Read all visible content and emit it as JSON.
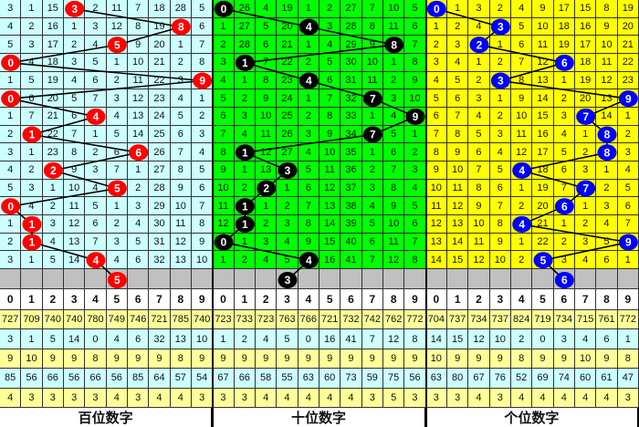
{
  "columns": [
    "0",
    "1",
    "2",
    "3",
    "4",
    "5",
    "6",
    "7",
    "8",
    "9"
  ],
  "colors": {
    "stat_odd": "#ffff99",
    "stat_even": "#ccffff",
    "gray_row": "#c0c0c0",
    "line": "#000000"
  },
  "panels": [
    {
      "label": "百位数字",
      "bg": "#ccffff",
      "ball_color": "#ff0000",
      "rows": [
        [
          3,
          1,
          15,
          3,
          2,
          11,
          7,
          18,
          28,
          5
        ],
        [
          4,
          2,
          16,
          1,
          3,
          12,
          8,
          19,
          8,
          6
        ],
        [
          5,
          3,
          17,
          2,
          4,
          5,
          9,
          20,
          1,
          7
        ],
        [
          0,
          4,
          18,
          3,
          5,
          1,
          10,
          21,
          2,
          8
        ],
        [
          1,
          5,
          19,
          4,
          6,
          2,
          11,
          22,
          3,
          9
        ],
        [
          0,
          6,
          20,
          5,
          7,
          3,
          12,
          23,
          4,
          1
        ],
        [
          1,
          7,
          21,
          6,
          4,
          4,
          13,
          24,
          5,
          2
        ],
        [
          2,
          1,
          22,
          7,
          1,
          5,
          14,
          25,
          6,
          3
        ],
        [
          3,
          1,
          23,
          8,
          2,
          6,
          6,
          26,
          7,
          4
        ],
        [
          4,
          2,
          2,
          9,
          3,
          7,
          1,
          27,
          8,
          5
        ],
        [
          5,
          3,
          1,
          10,
          4,
          5,
          2,
          28,
          9,
          6
        ],
        [
          0,
          4,
          2,
          11,
          5,
          1,
          3,
          29,
          10,
          7
        ],
        [
          1,
          1,
          3,
          12,
          6,
          2,
          4,
          30,
          11,
          8
        ],
        [
          2,
          1,
          4,
          13,
          7,
          3,
          5,
          31,
          12,
          9
        ],
        [
          3,
          1,
          5,
          14,
          4,
          4,
          6,
          32,
          13,
          10
        ]
      ],
      "hits": [
        3,
        8,
        5,
        0,
        9,
        0,
        4,
        1,
        6,
        2,
        5,
        0,
        1,
        1,
        4
      ],
      "prediction": 5,
      "stats": [
        [
          727,
          709,
          740,
          740,
          780,
          749,
          746,
          721,
          785,
          740
        ],
        [
          3,
          1,
          5,
          14,
          0,
          4,
          6,
          32,
          13,
          10
        ],
        [
          9,
          10,
          9,
          9,
          8,
          9,
          9,
          9,
          8,
          9
        ],
        [
          85,
          56,
          66,
          56,
          66,
          56,
          85,
          64,
          57,
          54
        ],
        [
          4,
          3,
          3,
          3,
          3,
          4,
          3,
          4,
          4,
          3
        ]
      ]
    },
    {
      "label": "十位数字",
      "bg": "#00ff00",
      "ball_color": "#000000",
      "rows": [
        [
          0,
          26,
          4,
          19,
          1,
          2,
          27,
          7,
          10,
          5
        ],
        [
          1,
          27,
          5,
          20,
          4,
          3,
          28,
          8,
          11,
          6
        ],
        [
          2,
          28,
          6,
          21,
          1,
          4,
          29,
          9,
          8,
          7
        ],
        [
          3,
          1,
          7,
          22,
          2,
          5,
          30,
          10,
          1,
          8
        ],
        [
          4,
          1,
          8,
          23,
          4,
          6,
          31,
          11,
          2,
          9
        ],
        [
          5,
          2,
          9,
          24,
          1,
          7,
          32,
          7,
          3,
          10
        ],
        [
          6,
          3,
          10,
          25,
          2,
          8,
          33,
          1,
          4,
          9
        ],
        [
          7,
          4,
          11,
          26,
          3,
          9,
          34,
          7,
          5,
          1
        ],
        [
          8,
          1,
          12,
          27,
          4,
          10,
          35,
          1,
          6,
          2
        ],
        [
          9,
          1,
          13,
          3,
          5,
          11,
          36,
          2,
          7,
          3
        ],
        [
          10,
          2,
          2,
          1,
          6,
          12,
          37,
          3,
          8,
          4
        ],
        [
          11,
          1,
          1,
          2,
          7,
          13,
          38,
          4,
          9,
          5
        ],
        [
          12,
          1,
          2,
          3,
          8,
          14,
          39,
          5,
          10,
          6
        ],
        [
          0,
          1,
          3,
          4,
          9,
          15,
          40,
          6,
          11,
          7
        ],
        [
          1,
          2,
          4,
          5,
          4,
          16,
          41,
          7,
          12,
          8
        ]
      ],
      "hits": [
        0,
        4,
        8,
        1,
        4,
        7,
        9,
        7,
        1,
        3,
        2,
        1,
        1,
        0,
        4
      ],
      "prediction": 3,
      "stats": [
        [
          723,
          733,
          723,
          763,
          766,
          721,
          732,
          742,
          762,
          772
        ],
        [
          1,
          2,
          4,
          5,
          0,
          16,
          41,
          7,
          12,
          8
        ],
        [
          9,
          9,
          9,
          9,
          9,
          9,
          9,
          9,
          9,
          9
        ],
        [
          67,
          66,
          58,
          55,
          63,
          60,
          73,
          59,
          75,
          56
        ],
        [
          3,
          3,
          4,
          4,
          4,
          4,
          4,
          3,
          5,
          3
        ]
      ]
    },
    {
      "label": "个位数字",
      "bg": "#ffff00",
      "ball_color": "#0000ff",
      "rows": [
        [
          0,
          1,
          3,
          2,
          4,
          9,
          17,
          15,
          8,
          19
        ],
        [
          1,
          2,
          4,
          3,
          5,
          10,
          18,
          16,
          9,
          20
        ],
        [
          2,
          3,
          2,
          1,
          6,
          11,
          19,
          17,
          10,
          21
        ],
        [
          3,
          4,
          1,
          2,
          7,
          12,
          6,
          18,
          11,
          22
        ],
        [
          4,
          5,
          2,
          3,
          8,
          13,
          1,
          19,
          12,
          23
        ],
        [
          5,
          6,
          3,
          1,
          9,
          14,
          2,
          20,
          13,
          9
        ],
        [
          6,
          7,
          4,
          2,
          10,
          15,
          3,
          7,
          14,
          1
        ],
        [
          7,
          8,
          5,
          3,
          11,
          16,
          4,
          1,
          8,
          2
        ],
        [
          8,
          9,
          6,
          4,
          12,
          17,
          5,
          2,
          8,
          3
        ],
        [
          9,
          10,
          7,
          5,
          4,
          18,
          6,
          3,
          1,
          4
        ],
        [
          10,
          11,
          8,
          6,
          1,
          19,
          7,
          7,
          2,
          5
        ],
        [
          11,
          12,
          9,
          7,
          2,
          20,
          6,
          1,
          3,
          6
        ],
        [
          12,
          13,
          10,
          8,
          4,
          21,
          1,
          2,
          4,
          7
        ],
        [
          13,
          14,
          11,
          9,
          1,
          22,
          2,
          3,
          5,
          9
        ],
        [
          14,
          15,
          12,
          10,
          2,
          5,
          3,
          4,
          6,
          1
        ]
      ],
      "hits": [
        0,
        3,
        2,
        6,
        3,
        9,
        7,
        8,
        8,
        4,
        7,
        6,
        4,
        9,
        5
      ],
      "prediction": 6,
      "stats": [
        [
          704,
          737,
          734,
          737,
          824,
          719,
          734,
          715,
          761,
          772
        ],
        [
          14,
          15,
          12,
          10,
          2,
          0,
          3,
          4,
          6,
          1
        ],
        [
          10,
          9,
          9,
          9,
          8,
          9,
          9,
          10,
          9,
          8
        ],
        [
          63,
          80,
          67,
          76,
          52,
          69,
          74,
          60,
          61,
          47
        ],
        [
          3,
          3,
          4,
          3,
          4,
          4,
          4,
          4,
          4,
          3
        ]
      ]
    }
  ]
}
